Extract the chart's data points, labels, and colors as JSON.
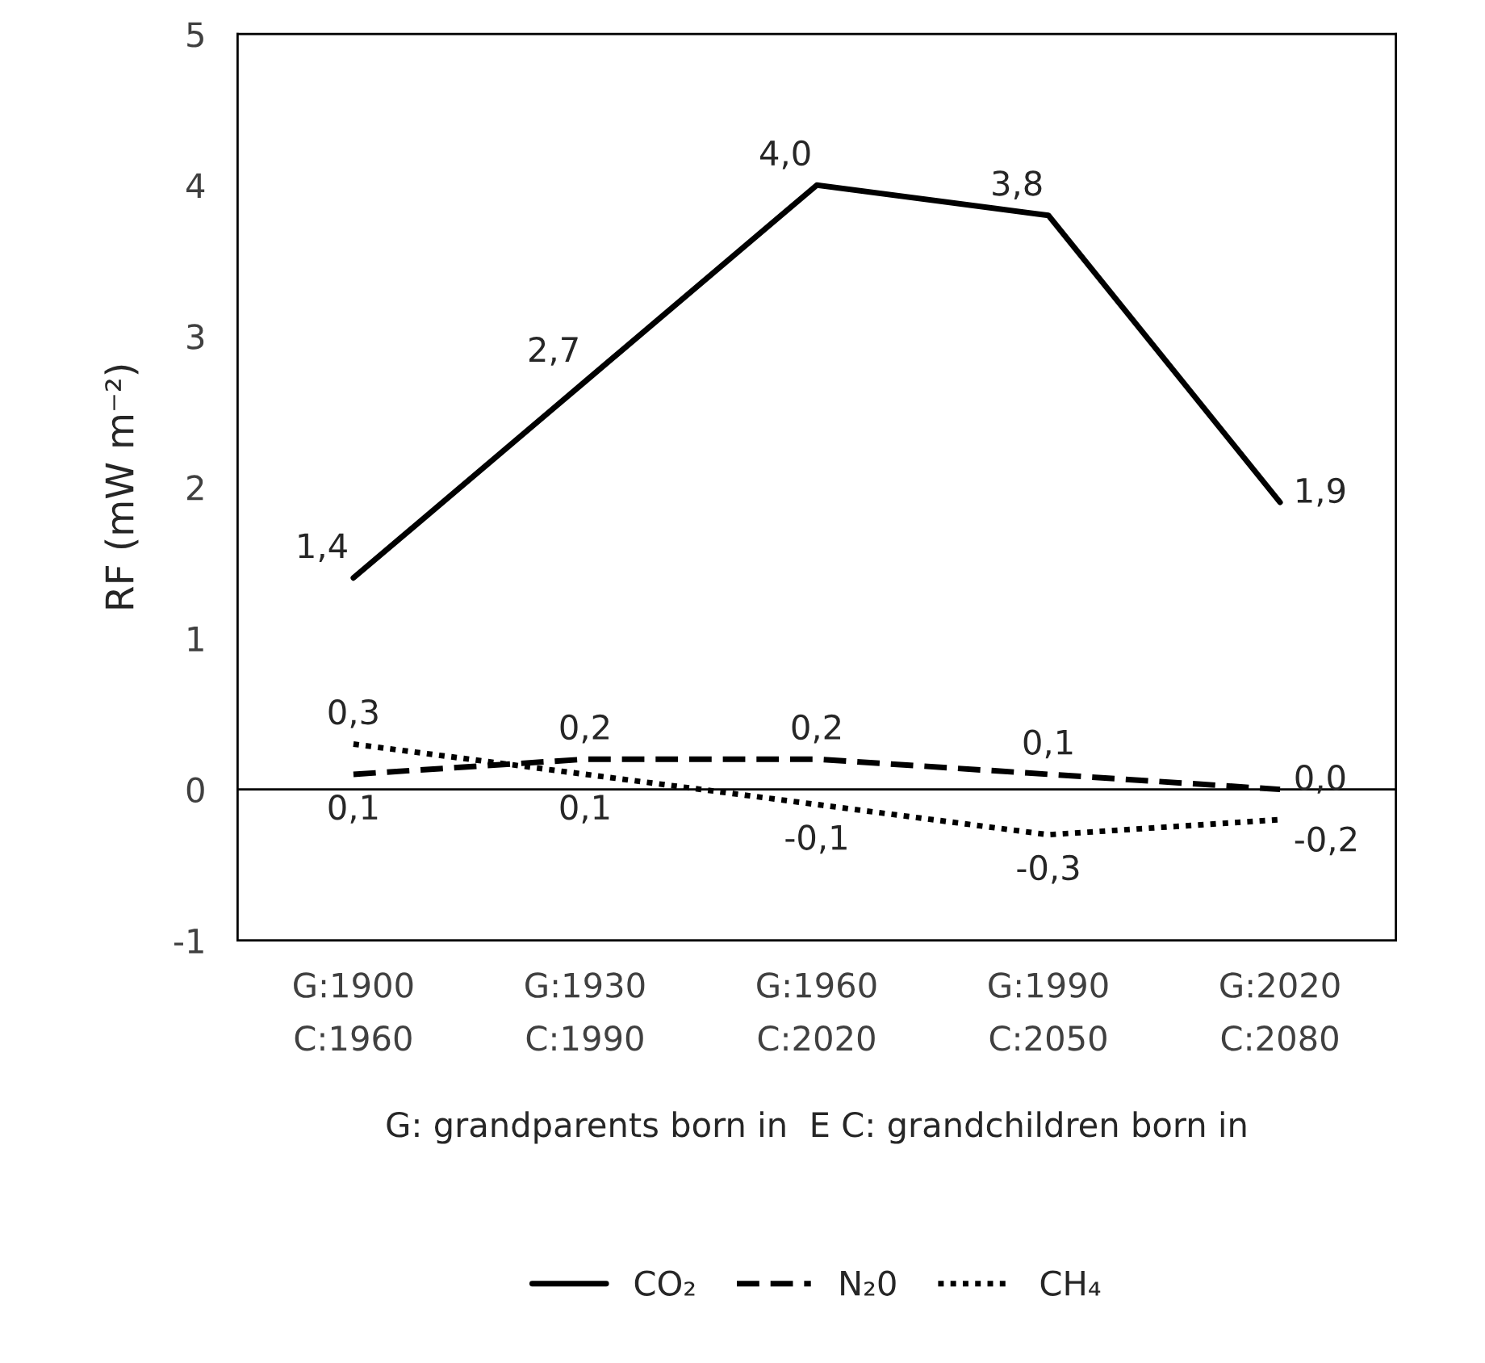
{
  "chart_data": {
    "type": "line",
    "ylabel": "RF (mW m⁻²)",
    "xlabel": "G: grandparents born in  E C: grandchildren born in",
    "categories": [
      "G:1900\nC:1960",
      "G:1930\nC:1990",
      "G:1960\nC:2020",
      "G:1990\nC:2050",
      "G:2020\nC:2080"
    ],
    "series": [
      {
        "name": "CO₂",
        "color": "#000000",
        "line_style": "solid",
        "values": [
          1.4,
          2.7,
          4.0,
          3.8,
          1.9
        ],
        "value_labels": [
          "1,4",
          "2,7",
          "4,0",
          "3,8",
          "1,9"
        ]
      },
      {
        "name": "N₂0",
        "color": "#000000",
        "line_style": "dashed",
        "values": [
          0.1,
          0.2,
          0.2,
          0.1,
          0.0
        ],
        "value_labels": [
          "0,1",
          "0,2",
          "0,2",
          "0,1",
          "0,0"
        ]
      },
      {
        "name": "CH₄",
        "color": "#000000",
        "line_style": "dotted",
        "values": [
          0.3,
          0.1,
          -0.1,
          -0.3,
          -0.2
        ],
        "value_labels": [
          "0,3",
          "0,1",
          "-0,1",
          "-0,3",
          "-0,2"
        ]
      }
    ],
    "ylim": [
      -1,
      5
    ],
    "yticks": [
      -1,
      0,
      1,
      2,
      3,
      4,
      5
    ],
    "ref_lines": [
      {
        "axis": "y",
        "value": 0,
        "color": "#000000"
      }
    ],
    "grid": false,
    "legend": "bottom",
    "marker": "none"
  }
}
